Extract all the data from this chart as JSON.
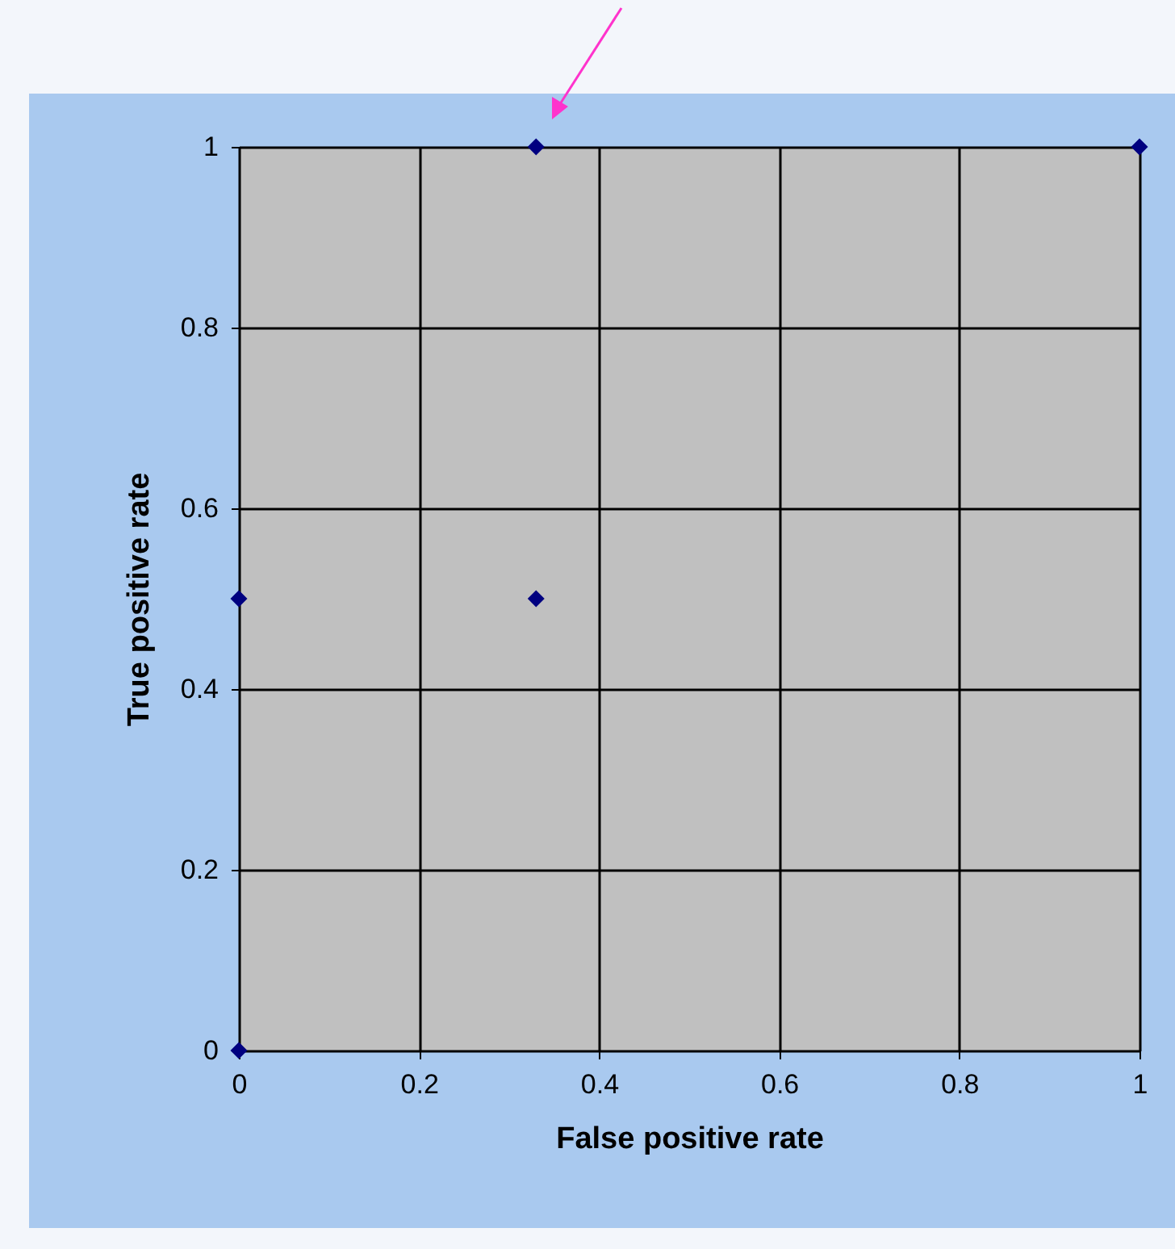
{
  "chart_data": {
    "type": "scatter",
    "xlabel": "False positive rate",
    "ylabel": "True positive rate",
    "x": [
      0,
      0,
      0.33,
      0.33,
      1
    ],
    "series": [
      {
        "color": "#000080",
        "values": [
          0,
          0.5,
          0.5,
          1,
          1
        ]
      }
    ],
    "xlim": [
      0,
      1
    ],
    "ylim": [
      0,
      1
    ],
    "xticks": [
      0,
      0.2,
      0.4,
      0.6,
      0.8,
      1
    ],
    "yticks": [
      0,
      0.2,
      0.4,
      0.6,
      0.8,
      1
    ],
    "grid": true,
    "marker": "diamond"
  }
}
